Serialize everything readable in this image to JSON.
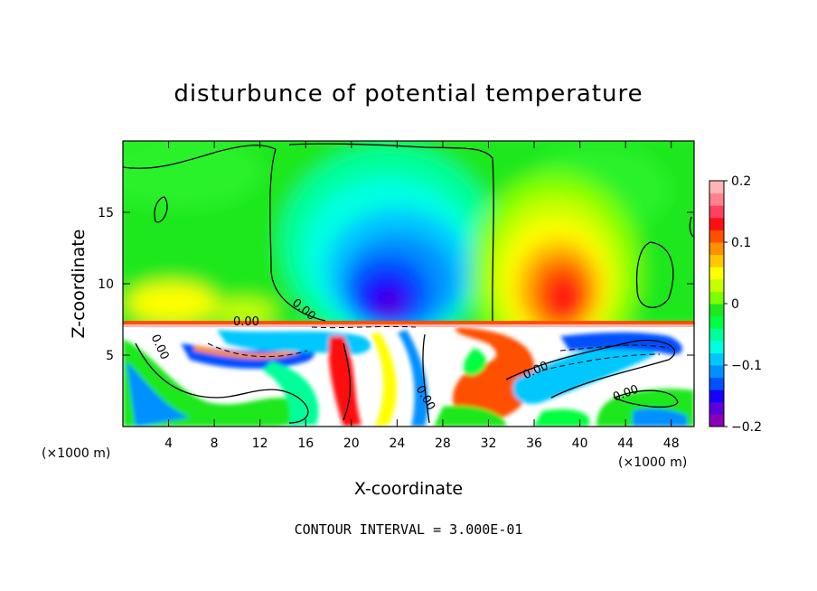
{
  "chart_data": {
    "type": "heatmap",
    "title": "disturbunce of potential temperature",
    "xlabel": "X-coordinate",
    "ylabel": "Z-coordinate",
    "x_unit": "(×1000 m)",
    "xlim": [
      0,
      50
    ],
    "ylim": [
      0,
      20
    ],
    "x_ticks": [
      4,
      8,
      12,
      16,
      20,
      24,
      28,
      32,
      36,
      40,
      44,
      48
    ],
    "y_ticks": [
      5,
      10,
      15
    ],
    "colorbar": {
      "min": -0.2,
      "max": 0.2,
      "tick_values": [
        0.2,
        0.1,
        0,
        -0.1,
        -0.2
      ],
      "tick_labels": [
        "0.2",
        "0.1",
        "0",
        "−0.1",
        "−0.2"
      ],
      "colors": [
        "#8a00b8",
        "#5a00d8",
        "#1800ff",
        "#0050ff",
        "#0090ff",
        "#00c8ff",
        "#00ffe0",
        "#00ff9a",
        "#00ff40",
        "#1ee81e",
        "#7cff00",
        "#c8ff00",
        "#ffff00",
        "#ffc800",
        "#ff9000",
        "#ff5000",
        "#ff1010",
        "#ff4060",
        "#ff8090",
        "#ffb4b4"
      ]
    },
    "contour_interval_text": "CONTOUR INTERVAL = 3.000E-01",
    "contour_labels": [
      "0.00",
      "0.00",
      "0.00",
      "0.00",
      "0.00",
      "0.00"
    ],
    "features": [
      {
        "name": "warm anomaly upper layer",
        "x": 38.5,
        "z": 10.5,
        "value": 0.15
      },
      {
        "name": "cold anomaly upper layer",
        "x": 23.5,
        "z": 9.5,
        "value": -0.15
      },
      {
        "name": "inversion interface",
        "z": 7.2
      }
    ]
  }
}
